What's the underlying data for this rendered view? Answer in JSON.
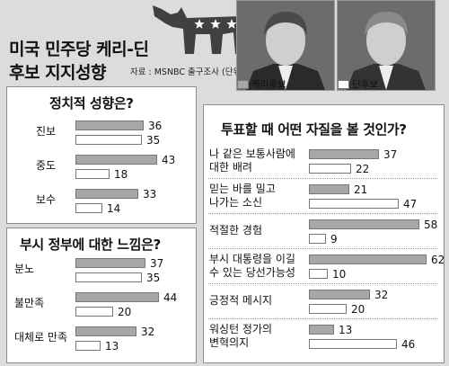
{
  "title_lines": [
    "미국 민주당 케리-딘",
    "후보 지지성향"
  ],
  "source": "자료 : MSNBC 출구조사 (단위:%)",
  "legend": {
    "kerry": "케리후보",
    "dean": "딘후보"
  },
  "colors": {
    "kerry": "#a7a7a7",
    "dean": "#ffffff",
    "bg": "#dcdcdc",
    "logo": "#404040"
  },
  "chart_data": [
    {
      "type": "bar",
      "title": "정치적 성향은?",
      "categories": [
        "진보",
        "중도",
        "보수"
      ],
      "series": [
        {
          "name": "케리후보",
          "values": [
            36,
            43,
            33
          ]
        },
        {
          "name": "딘후보",
          "values": [
            35,
            18,
            14
          ]
        }
      ]
    },
    {
      "type": "bar",
      "title": "부시 정부에 대한 느낌은?",
      "categories": [
        "분노",
        "불만족",
        "대체로 만족"
      ],
      "series": [
        {
          "name": "케리후보",
          "values": [
            37,
            44,
            32
          ]
        },
        {
          "name": "딘후보",
          "values": [
            35,
            20,
            13
          ]
        }
      ]
    },
    {
      "type": "bar",
      "title": "투표할 때 어떤 자질을 볼 것인가?",
      "categories": [
        [
          "나 같은 보통사람에",
          "대한 배려"
        ],
        [
          "믿는 바를 밀고",
          "나가는 소신"
        ],
        [
          "적절한 경험"
        ],
        [
          "부시 대통령을 이길",
          "수 있는 당선가능성"
        ],
        [
          "긍정적 메시지"
        ],
        [
          "워싱턴 정가의",
          "변혁의지"
        ]
      ],
      "series": [
        {
          "name": "케리후보",
          "values": [
            37,
            21,
            58,
            62,
            32,
            13
          ]
        },
        {
          "name": "딘후보",
          "values": [
            22,
            47,
            9,
            10,
            20,
            46
          ]
        }
      ]
    }
  ]
}
